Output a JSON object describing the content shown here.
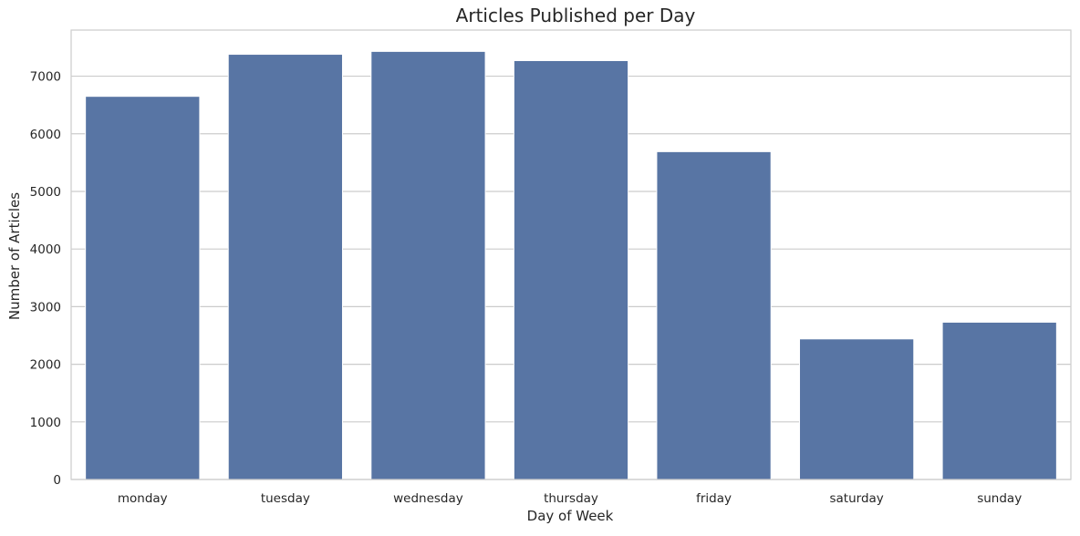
{
  "chart_data": {
    "type": "bar",
    "title": "Articles Published per Day",
    "xlabel": "Day of Week",
    "ylabel": "Number of Articles",
    "categories": [
      "monday",
      "tuesday",
      "wednesday",
      "thursday",
      "friday",
      "saturday",
      "sunday"
    ],
    "values": [
      6650,
      7380,
      7430,
      7270,
      5690,
      2440,
      2730
    ],
    "ylim": [
      0,
      7800
    ],
    "yticks": [
      0,
      1000,
      2000,
      3000,
      4000,
      5000,
      6000,
      7000
    ],
    "grid": "horizontal",
    "bar_color": "#5875a4",
    "grid_color": "#cccccc",
    "frame_color": "#cccccc"
  }
}
